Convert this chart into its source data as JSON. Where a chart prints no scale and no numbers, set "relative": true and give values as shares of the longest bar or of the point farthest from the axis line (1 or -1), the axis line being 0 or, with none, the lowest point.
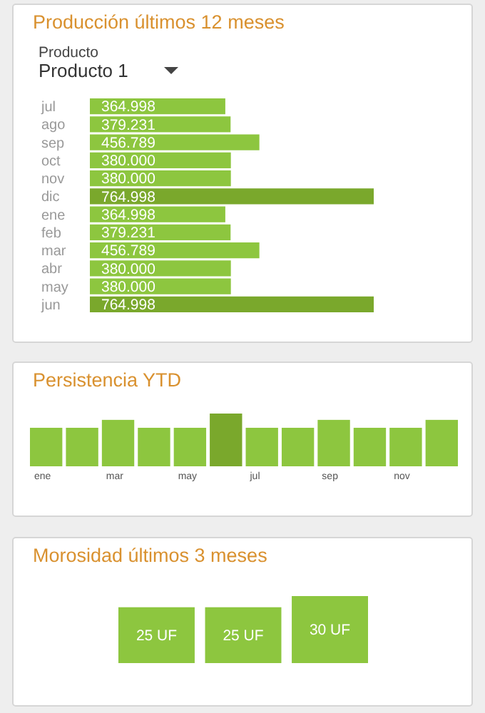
{
  "chart_data": [
    {
      "type": "bar",
      "title": "Producción últimos 12 meses",
      "orientation": "horizontal",
      "annotations": [
        "Producto",
        "Producto 1"
      ],
      "categories": [
        "jul",
        "ago",
        "sep",
        "oct",
        "nov",
        "dic",
        "ene",
        "feb",
        "mar",
        "abr",
        "may",
        "jun"
      ],
      "values": [
        364998,
        379231,
        456789,
        380000,
        380000,
        764998,
        364998,
        379231,
        456789,
        380000,
        380000,
        764998
      ],
      "value_labels": [
        "364.998",
        "379.231",
        "456.789",
        "380.000",
        "380.000",
        "764.998",
        "364.998",
        "379.231",
        "456.789",
        "380.000",
        "380.000",
        "764.998"
      ],
      "colors": [
        "#8dc63f",
        "#8dc63f",
        "#8dc63f",
        "#8dc63f",
        "#8dc63f",
        "#7aa82c",
        "#8dc63f",
        "#8dc63f",
        "#8dc63f",
        "#8dc63f",
        "#8dc63f",
        "#7aa82c"
      ]
    },
    {
      "type": "bar",
      "title": "Persistencia YTD",
      "relative": true,
      "categories": [
        "ene",
        null,
        "mar",
        null,
        "may",
        null,
        "jul",
        null,
        "sep",
        null,
        "nov",
        null
      ],
      "values": [
        0.73,
        0.73,
        0.88,
        0.73,
        0.73,
        1,
        0.73,
        0.73,
        0.88,
        0.73,
        0.73,
        0.88
      ],
      "colors": [
        "#8dc63f",
        "#8dc63f",
        "#8dc63f",
        "#8dc63f",
        "#8dc63f",
        "#7aa82c",
        "#8dc63f",
        "#8dc63f",
        "#8dc63f",
        "#8dc63f",
        "#8dc63f",
        "#8dc63f"
      ]
    },
    {
      "type": "bar",
      "title": "Morosidad últimos 3 meses",
      "categories": [
        null,
        null,
        null
      ],
      "values": [
        25,
        25,
        30
      ],
      "value_labels": [
        "25 UF",
        "25 UF",
        "30 UF"
      ],
      "colors": [
        "#8dc63f",
        "#8dc63f",
        "#8dc63f"
      ]
    }
  ]
}
